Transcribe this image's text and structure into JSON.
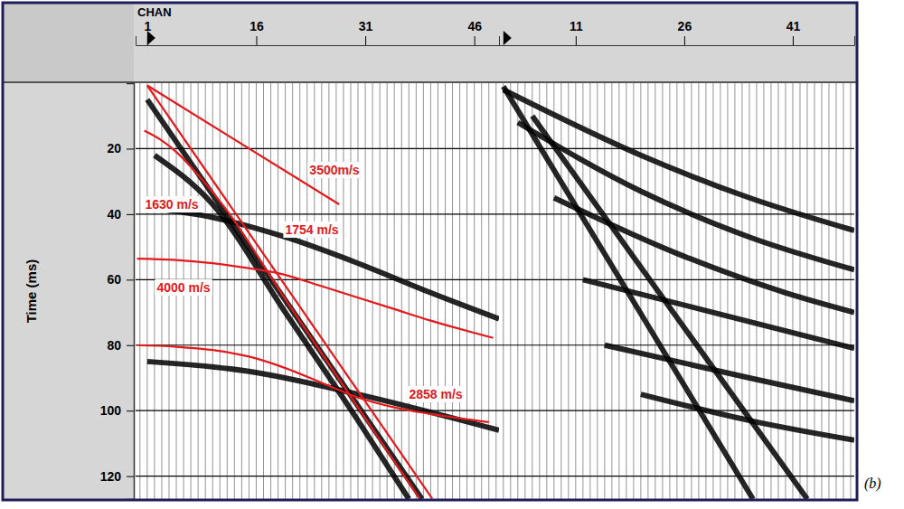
{
  "chart_data": [
    {
      "type": "seismic",
      "x_label": "CHAN",
      "y_label": "Time (ms)",
      "xlim": [
        -0.6,
        49.4
      ],
      "xticks": [
        1,
        16,
        31,
        46
      ],
      "ylim": [
        0,
        127
      ],
      "yticks": [
        20,
        40,
        60,
        80,
        100,
        120
      ],
      "grid": true,
      "record_start": 1,
      "series": [
        {
          "name": "3500m/s",
          "color": "#e3191c",
          "x": [
            1,
            27.4
          ],
          "values": [
            0.7,
            37
          ]
        },
        {
          "name": "1630 m/s",
          "color": "#e3191c",
          "x": [
            0.6,
            3,
            5,
            8,
            12,
            20,
            30,
            37,
            38.5
          ],
          "values": [
            14.5,
            17.5,
            21,
            28,
            39,
            66,
            99,
            122,
            126.8
          ]
        },
        {
          "name": "1754 m/s",
          "color": "#e3191c",
          "x": [
            1,
            40.2
          ],
          "values": [
            0.7,
            126.8
          ]
        },
        {
          "name": "4000 m/s",
          "color": "#e3191c",
          "x": [
            -0.4,
            5,
            10,
            15,
            19,
            25,
            30,
            35,
            40,
            48.6
          ],
          "values": [
            53.6,
            54,
            55,
            56.5,
            58,
            62,
            65.5,
            69,
            72.5,
            77.8
          ]
        },
        {
          "name": "2858 m/s",
          "color": "#e3191c",
          "x": [
            -0.4,
            5,
            10,
            15,
            20,
            25,
            30,
            35,
            40,
            48
          ],
          "values": [
            80,
            80.5,
            81.5,
            83.5,
            87,
            91.5,
            96,
            99,
            101,
            103.5
          ]
        }
      ],
      "events": [
        {
          "color": "#000000",
          "x": [
            1,
            38.8
          ],
          "values": [
            5,
            127
          ]
        },
        {
          "color": "#000000",
          "x": [
            2,
            10,
            20,
            30,
            37
          ],
          "values": [
            22,
            37,
            70,
            103,
            127
          ]
        },
        {
          "color": "#000000",
          "x": [
            1,
            10,
            20,
            30,
            40,
            49.4
          ],
          "values": [
            38,
            41,
            47,
            55,
            64,
            72
          ]
        },
        {
          "color": "#000000",
          "x": [
            1,
            15,
            30,
            49.4
          ],
          "values": [
            85,
            88,
            95,
            106
          ]
        }
      ]
    },
    {
      "type": "seismic",
      "xlim": [
        0.4,
        49.5
      ],
      "xticks": [
        11,
        26,
        41
      ],
      "ylim": [
        0,
        127
      ],
      "yticks": [
        20,
        40,
        60,
        80,
        100,
        120
      ],
      "grid": true,
      "tick_labels": "x",
      "record_start": 1,
      "events": [
        {
          "color": "#000000",
          "x": [
            1,
            35.5
          ],
          "values": [
            1,
            127
          ]
        },
        {
          "color": "#000000",
          "x": [
            5,
            43
          ],
          "values": [
            10,
            127
          ]
        },
        {
          "color": "#000000",
          "x": [
            1,
            20,
            35,
            49.5
          ],
          "values": [
            2,
            22,
            35,
            45
          ]
        },
        {
          "color": "#000000",
          "x": [
            3,
            20,
            35,
            49.5
          ],
          "values": [
            12,
            33,
            47,
            57
          ]
        },
        {
          "color": "#000000",
          "x": [
            8,
            25,
            40,
            49.5
          ],
          "values": [
            35,
            52,
            64,
            70
          ]
        },
        {
          "color": "#000000",
          "x": [
            12,
            30,
            49.5
          ],
          "values": [
            60,
            70,
            81
          ]
        },
        {
          "color": "#000000",
          "x": [
            15,
            35,
            49.5
          ],
          "values": [
            80,
            90,
            97
          ]
        },
        {
          "color": "#000000",
          "x": [
            20,
            35,
            49.5
          ],
          "values": [
            95,
            103,
            109
          ]
        }
      ]
    }
  ],
  "caption": "(b)"
}
